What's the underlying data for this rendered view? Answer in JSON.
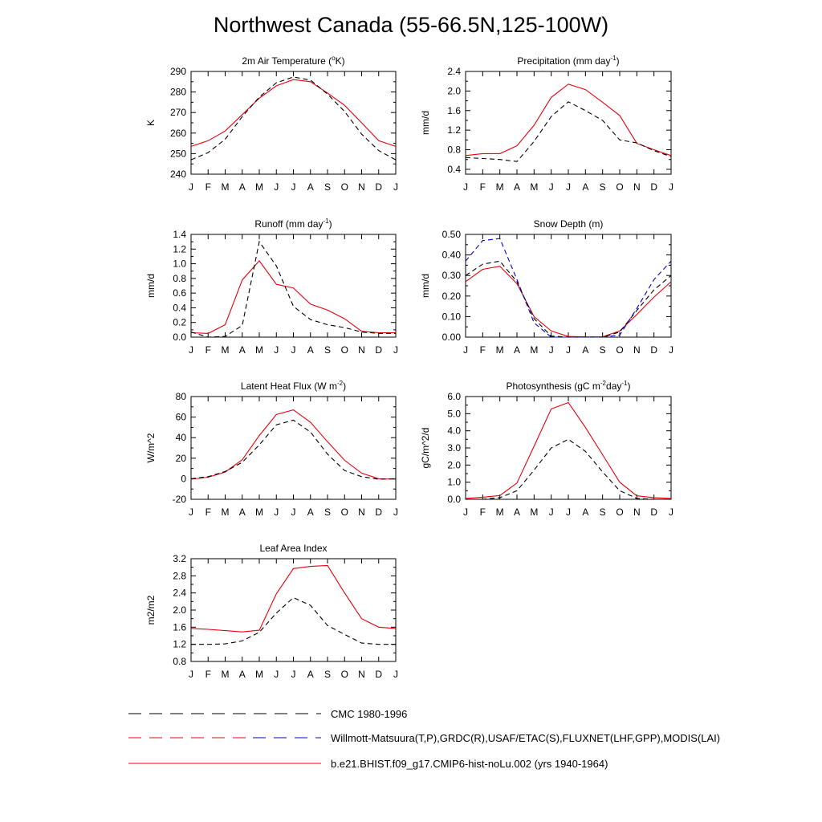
{
  "page_title": "Northwest Canada (55-66.5N,125-100W)",
  "colors": {
    "model": "#e8000b",
    "obs": "#000000",
    "cmc": "#0000cc",
    "axis": "#000000"
  },
  "months": [
    "J",
    "F",
    "M",
    "A",
    "M",
    "J",
    "J",
    "A",
    "S",
    "O",
    "N",
    "D",
    "J"
  ],
  "legend": [
    {
      "label": "CMC 1980-1996",
      "style": "dashed-black"
    },
    {
      "label": "Willmott-Matsuura(T,P),GRDC(R),USAF/ETAC(S),FLUXNET(LHF,GPP),MODIS(LAI)",
      "style": "dashed-mixed"
    },
    {
      "label": "b.e21.BHIST.f09_g17.CMIP6-hist-noLu.002 (yrs 1940-1964)",
      "style": "solid-red"
    }
  ],
  "chart_data": [
    {
      "type": "line",
      "title": "2m Air Temperature (°K)",
      "title_parts": [
        "2m Air Temperature (",
        "o",
        "K)"
      ],
      "ylabel": "K",
      "ylim": [
        240,
        290
      ],
      "yticks": [
        240,
        250,
        260,
        270,
        280,
        290
      ],
      "ytick_labels": [
        "240",
        "250",
        "260",
        "270",
        "280",
        "290"
      ],
      "series": [
        {
          "role": "model",
          "values": [
            253.5,
            256.3,
            261.0,
            269.0,
            277.0,
            283.0,
            286.0,
            285.0,
            279.5,
            273.5,
            265.0,
            256.3,
            253.5
          ]
        },
        {
          "role": "obs",
          "values": [
            247.0,
            250.5,
            257.0,
            268.0,
            277.5,
            284.5,
            287.3,
            285.8,
            279.0,
            270.5,
            259.5,
            251.5,
            247.0
          ]
        }
      ]
    },
    {
      "type": "line",
      "title": "Precipitation (mm day-1)",
      "title_parts": [
        "Precipitation (mm day",
        "-1",
        ")"
      ],
      "ylabel": "mm/d",
      "ylim": [
        0.3,
        2.4
      ],
      "yticks": [
        0.4,
        0.8,
        1.2,
        1.6,
        2.0,
        2.4
      ],
      "ytick_labels": [
        "0.4",
        "0.8",
        "1.2",
        "1.6",
        "2.0",
        "2.4"
      ],
      "series": [
        {
          "role": "model",
          "values": [
            0.68,
            0.72,
            0.72,
            0.88,
            1.3,
            1.87,
            2.14,
            2.03,
            1.77,
            1.5,
            0.93,
            0.8,
            0.68
          ]
        },
        {
          "role": "obs",
          "values": [
            0.64,
            0.62,
            0.6,
            0.56,
            0.97,
            1.48,
            1.78,
            1.6,
            1.4,
            1.0,
            0.94,
            0.78,
            0.66
          ]
        }
      ]
    },
    {
      "type": "line",
      "title": "Runoff (mm day-1)",
      "title_parts": [
        "Runoff (mm day",
        "-1",
        ")"
      ],
      "ylabel": "mm/d",
      "ylim": [
        0,
        1.4
      ],
      "yticks": [
        0,
        0.2,
        0.4,
        0.6,
        0.8,
        1.0,
        1.2,
        1.4
      ],
      "ytick_labels": [
        "0.0",
        "0.2",
        "0.4",
        "0.6",
        "0.8",
        "1.0",
        "1.2",
        "1.4"
      ],
      "series": [
        {
          "role": "model",
          "values": [
            0.06,
            0.05,
            0.17,
            0.78,
            1.04,
            0.72,
            0.67,
            0.45,
            0.37,
            0.25,
            0.08,
            0.06,
            0.06
          ]
        },
        {
          "role": "obs",
          "values": [
            0.07,
            0.0,
            0.01,
            0.16,
            1.3,
            0.97,
            0.42,
            0.24,
            0.17,
            0.13,
            0.07,
            0.05,
            0.05
          ]
        }
      ]
    },
    {
      "type": "line",
      "title": "Snow Depth (m)",
      "title_parts": [
        "Snow Depth (m)"
      ],
      "ylabel": "mm/d",
      "ylim": [
        0,
        0.5
      ],
      "yticks": [
        0,
        0.1,
        0.2,
        0.3,
        0.4,
        0.5
      ],
      "ytick_labels": [
        "0.00",
        "0.10",
        "0.20",
        "0.30",
        "0.40",
        "0.50"
      ],
      "series": [
        {
          "role": "model",
          "values": [
            0.27,
            0.33,
            0.345,
            0.26,
            0.1,
            0.03,
            0.003,
            0.001,
            0.002,
            0.03,
            0.11,
            0.195,
            0.27
          ]
        },
        {
          "role": "obs",
          "values": [
            0.3,
            0.355,
            0.37,
            0.27,
            0.09,
            0.005,
            0.0,
            0.0,
            0.0,
            0.025,
            0.13,
            0.23,
            0.3
          ]
        },
        {
          "role": "cmc",
          "values": [
            0.37,
            0.47,
            0.48,
            0.28,
            0.07,
            0.0,
            0.0,
            0.0,
            0.0,
            0.01,
            0.14,
            0.28,
            0.37
          ]
        }
      ]
    },
    {
      "type": "line",
      "title": "Latent Heat Flux (W m-2)",
      "title_parts": [
        "Latent Heat Flux (W m",
        "-2",
        ")"
      ],
      "ylabel": "W/m^2",
      "ylim": [
        -20,
        80
      ],
      "yticks": [
        -20,
        0,
        20,
        40,
        60,
        80
      ],
      "ytick_labels": [
        "-20",
        "0",
        "20",
        "40",
        "60",
        "80"
      ],
      "series": [
        {
          "role": "model",
          "values": [
            -0.5,
            1.5,
            6.5,
            18.5,
            42.0,
            62.5,
            67.0,
            55.0,
            36.0,
            18.0,
            5.5,
            0.0,
            -0.5
          ]
        },
        {
          "role": "obs",
          "values": [
            0.0,
            2.0,
            7.0,
            16.0,
            33.0,
            52.5,
            57.0,
            45.5,
            24.0,
            8.0,
            2.0,
            -0.5,
            0.0
          ]
        }
      ]
    },
    {
      "type": "line",
      "title": "Photosynthesis (gC m-2day-1)",
      "title_parts": [
        "Photosynthesis (gC m",
        "-2",
        "day",
        "-1",
        ")"
      ],
      "ylabel": "gC/m^2/d",
      "ylim": [
        0,
        6
      ],
      "yticks": [
        0,
        1,
        2,
        3,
        4,
        5,
        6
      ],
      "ytick_labels": [
        "0.0",
        "1.0",
        "2.0",
        "3.0",
        "4.0",
        "5.0",
        "6.0"
      ],
      "series": [
        {
          "role": "model",
          "values": [
            0.05,
            0.12,
            0.22,
            0.95,
            3.1,
            5.28,
            5.65,
            4.2,
            2.6,
            1.0,
            0.2,
            0.1,
            0.05
          ]
        },
        {
          "role": "obs",
          "values": [
            0.0,
            0.0,
            0.1,
            0.5,
            1.7,
            3.0,
            3.5,
            2.8,
            1.6,
            0.5,
            0.05,
            0.0,
            0.0
          ]
        }
      ]
    },
    {
      "type": "line",
      "title": "Leaf Area Index",
      "title_parts": [
        "Leaf Area Index"
      ],
      "ylabel": "m2/m2",
      "ylim": [
        0.8,
        3.2
      ],
      "yticks": [
        0.8,
        1.2,
        1.6,
        2.0,
        2.4,
        2.8,
        3.2
      ],
      "ytick_labels": [
        "0.8",
        "1.2",
        "1.6",
        "2.0",
        "2.4",
        "2.8",
        "3.2"
      ],
      "series": [
        {
          "role": "model",
          "values": [
            1.57,
            1.55,
            1.52,
            1.49,
            1.53,
            2.38,
            2.97,
            3.02,
            3.04,
            2.4,
            1.8,
            1.6,
            1.57
          ]
        },
        {
          "role": "obs",
          "values": [
            1.2,
            1.2,
            1.21,
            1.28,
            1.48,
            1.93,
            2.29,
            2.11,
            1.64,
            1.43,
            1.23,
            1.2,
            1.2
          ]
        }
      ]
    }
  ]
}
